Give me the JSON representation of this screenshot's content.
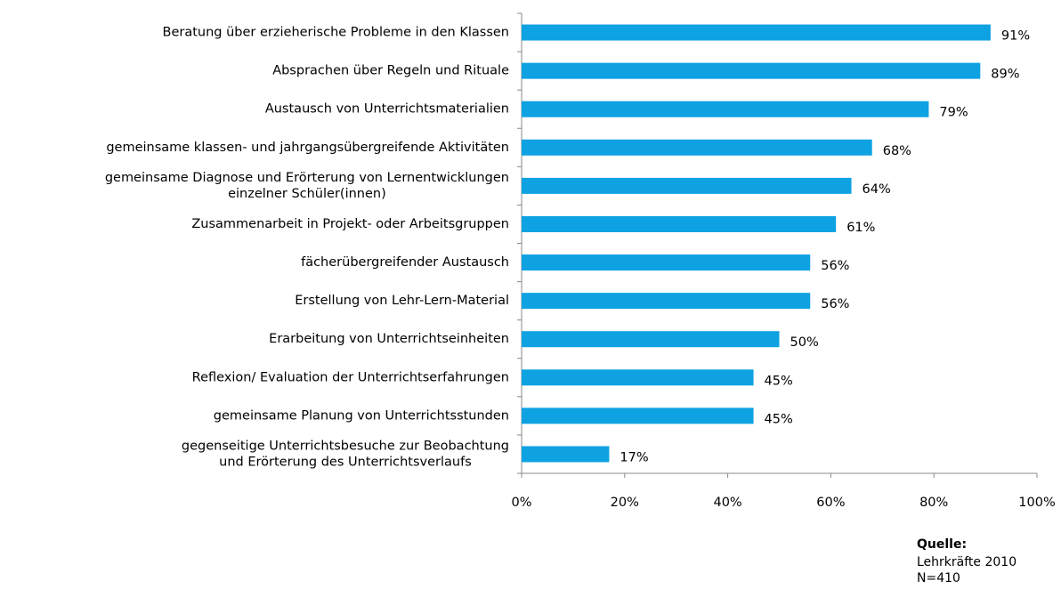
{
  "chart_data": {
    "type": "bar",
    "orientation": "horizontal",
    "categories": [
      "Beratung über erzieherische Probleme in den Klassen",
      "Absprachen über Regeln und Rituale",
      "Austausch von Unterrichtsmaterialien",
      "gemeinsame klassen- und jahrgangsübergreifende Aktivitäten",
      "gemeinsame Diagnose und Erörterung von Lernentwicklungen\neinzelner Schüler(innen)",
      "Zusammenarbeit in Projekt- oder Arbeitsgruppen",
      "fächerübergreifender Austausch",
      "Erstellung von Lehr-Lern-Material",
      "Erarbeitung von Unterrichtseinheiten",
      "Reflexion/ Evaluation der Unterrichtserfahrungen",
      "gemeinsame Planung von Unterrichtsstunden",
      "gegenseitige Unterrichtsbesuche zur Beobachtung\nund Erörterung des Unterrichtsverlaufs"
    ],
    "values": [
      91,
      89,
      79,
      68,
      64,
      61,
      56,
      56,
      50,
      45,
      45,
      17
    ],
    "value_labels": [
      "91%",
      "89%",
      "79%",
      "68%",
      "64%",
      "61%",
      "56%",
      "56%",
      "50%",
      "45%",
      "45%",
      "17%"
    ],
    "color": "#0ea2e2",
    "xlim": [
      0,
      100
    ],
    "xticks": [
      {
        "value": 0,
        "label": "0%"
      },
      {
        "value": 20,
        "label": "20%"
      },
      {
        "value": 40,
        "label": "40%"
      },
      {
        "value": 60,
        "label": "60%"
      },
      {
        "value": 80,
        "label": "80%"
      },
      {
        "value": 100,
        "label": "100%"
      }
    ],
    "grid": false,
    "source": {
      "heading": "Quelle:",
      "lines": [
        "Lehrkräfte 2010",
        "N=410"
      ]
    }
  }
}
